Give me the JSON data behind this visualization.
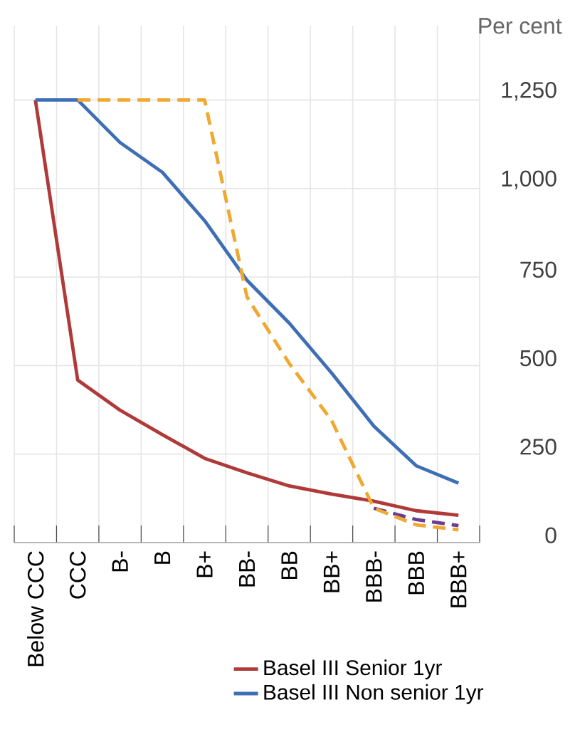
{
  "chart_data": {
    "type": "line",
    "ylabel": "Per cent",
    "categories": [
      "Below CCC",
      "CCC",
      "B-",
      "B",
      "B+",
      "BB-",
      "BB",
      "BB+",
      "BBB-",
      "BBB",
      "BBB+"
    ],
    "series": [
      {
        "name": "Basel III Senior 1yr",
        "color": "#b03a3a",
        "values": [
          1250,
          459,
          374,
          305,
          238,
          197,
          160,
          137,
          117,
          90,
          77
        ]
      },
      {
        "name": "Basel III Non senior 1yr",
        "color": "#3e6fb5",
        "values": [
          1250,
          1250,
          1130,
          1046,
          909,
          741,
          620,
          479,
          329,
          217,
          168
        ]
      },
      {
        "color": "#6a3d8f",
        "line_style": "dashed",
        "values": [
          null,
          null,
          null,
          null,
          null,
          null,
          null,
          null,
          97,
          65,
          48
        ]
      },
      {
        "color": "#f0a830",
        "line_style": "dashed",
        "values": [
          null,
          1250,
          1250,
          1250,
          1250,
          694,
          506,
          345,
          97,
          50,
          36
        ]
      }
    ],
    "ylim": [
      0,
      1460
    ],
    "yticks": [
      0,
      250,
      500,
      750,
      {
        "value": 1000,
        "label": "1,000"
      },
      {
        "value": 1250,
        "label": "1,250"
      }
    ],
    "grid": true,
    "legend": "bottom",
    "marker": "none",
    "line_style": "solid"
  }
}
